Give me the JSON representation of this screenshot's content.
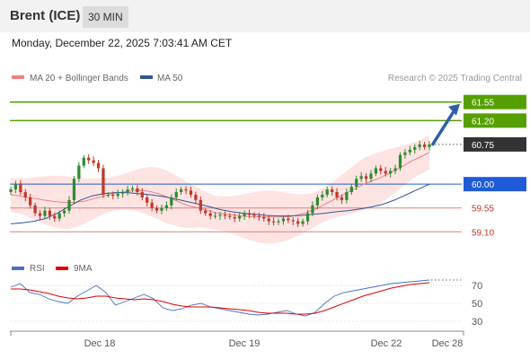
{
  "header": {
    "instrument": "Brent (ICE)",
    "timeframe": "30 MIN",
    "datetime": "Monday, December 22, 2025 7:03:41 AM CET"
  },
  "legend": {
    "ma20_label": "MA 20 + Bollinger Bands",
    "ma50_label": "MA 50",
    "credit": "Research © 2025 Trading Central",
    "ma20_color": "#f08080",
    "ma50_color": "#2f5597"
  },
  "rsi_legend": {
    "rsi_label": "RSI",
    "ma_label": "9MA",
    "rsi_color": "#4472c4",
    "ma_color": "#e00000"
  },
  "colors": {
    "up_candle": "#2e8b2e",
    "down_candle": "#c0392b",
    "resistance": "#55a000",
    "pivot": "#1f5bd6",
    "support": "#e08080",
    "last_price": "#333333",
    "arrow": "#2f5fa8"
  },
  "chart_data": [
    {
      "type": "candlestick",
      "x_labels": [
        "Dec 18",
        "Dec 19",
        "Dec 22",
        "Dec 28"
      ],
      "ylim": [
        58.8,
        61.85
      ],
      "levels": [
        {
          "value": 61.55,
          "label": "61.55",
          "kind": "resistance"
        },
        {
          "value": 61.2,
          "label": "61.20",
          "kind": "resistance"
        },
        {
          "value": 60.75,
          "label": "60.75",
          "kind": "last"
        },
        {
          "value": 60.0,
          "label": "60.00",
          "kind": "pivot"
        },
        {
          "value": 59.55,
          "label": "59.55",
          "kind": "support"
        },
        {
          "value": 59.1,
          "label": "59.10",
          "kind": "support"
        }
      ],
      "close_approx": [
        59.9,
        60.0,
        59.85,
        59.75,
        59.6,
        59.45,
        59.4,
        59.5,
        59.4,
        59.35,
        59.45,
        59.5,
        59.7,
        60.1,
        60.35,
        60.5,
        60.45,
        60.4,
        60.3,
        59.8,
        59.8,
        59.78,
        59.82,
        59.85,
        59.9,
        59.92,
        59.85,
        59.75,
        59.65,
        59.55,
        59.5,
        59.55,
        59.6,
        59.75,
        59.85,
        59.9,
        59.88,
        59.8,
        59.7,
        59.5,
        59.45,
        59.4,
        59.4,
        59.42,
        59.4,
        59.38,
        59.35,
        59.4,
        59.45,
        59.42,
        59.4,
        59.38,
        59.35,
        59.3,
        59.28,
        59.3,
        59.35,
        59.32,
        59.3,
        59.25,
        59.3,
        59.45,
        59.6,
        59.75,
        59.8,
        59.9,
        59.85,
        59.75,
        59.7,
        59.85,
        59.95,
        60.1,
        60.15,
        60.1,
        60.2,
        60.3,
        60.25,
        60.2,
        60.25,
        60.3,
        60.55,
        60.6,
        60.65,
        60.7,
        60.75,
        60.7,
        60.75
      ],
      "ma20": [
        59.8,
        59.78,
        59.75,
        59.73,
        59.7,
        59.68,
        59.66,
        59.65,
        59.66,
        59.68,
        59.72,
        59.76,
        59.8,
        59.84,
        59.86,
        59.88,
        59.88,
        59.86,
        59.82,
        59.76,
        59.7,
        59.63,
        59.58,
        59.55,
        59.5,
        59.46,
        59.44,
        59.42,
        59.4,
        59.39,
        59.38,
        59.38,
        59.38,
        59.38,
        59.39,
        59.42,
        59.46,
        59.52,
        59.6,
        59.68,
        59.76,
        59.84,
        59.92,
        60.0,
        60.06,
        60.12,
        60.2,
        60.28,
        60.36,
        60.45,
        60.52,
        60.6
      ],
      "ma50": [
        59.25,
        59.27,
        59.3,
        59.35,
        59.45,
        59.58,
        59.7,
        59.78,
        59.82,
        59.84,
        59.84,
        59.82,
        59.8,
        59.77,
        59.73,
        59.68,
        59.63,
        59.58,
        59.52,
        59.48,
        59.45,
        59.43,
        59.41,
        59.4,
        59.4,
        59.41,
        59.43,
        59.45,
        59.48,
        59.5,
        59.53,
        59.57,
        59.62,
        59.7,
        59.8,
        59.9,
        60.0
      ],
      "arrow": {
        "from_value": 60.75,
        "to_value": 61.55
      }
    },
    {
      "type": "line",
      "title": "RSI",
      "y_ticks": [
        70,
        50,
        30
      ],
      "ylim": [
        20,
        80
      ],
      "series": [
        {
          "name": "RSI",
          "values": [
            68,
            72,
            62,
            60,
            55,
            52,
            50,
            58,
            64,
            70,
            62,
            48,
            52,
            56,
            60,
            55,
            45,
            42,
            44,
            48,
            50,
            46,
            44,
            42,
            40,
            38,
            37,
            38,
            40,
            42,
            38,
            36,
            40,
            50,
            58,
            62,
            64,
            66,
            68,
            70,
            72,
            73,
            74,
            75,
            76
          ]
        },
        {
          "name": "9MA",
          "values": [
            66,
            66,
            65,
            63,
            61,
            58,
            56,
            55,
            56,
            58,
            58,
            56,
            55,
            54,
            55,
            54,
            52,
            49,
            47,
            46,
            46,
            46,
            45,
            44,
            43,
            42,
            40,
            39,
            39,
            39,
            38,
            38,
            39,
            42,
            46,
            50,
            54,
            58,
            61,
            64,
            67,
            69,
            71,
            72,
            73
          ]
        }
      ]
    }
  ]
}
